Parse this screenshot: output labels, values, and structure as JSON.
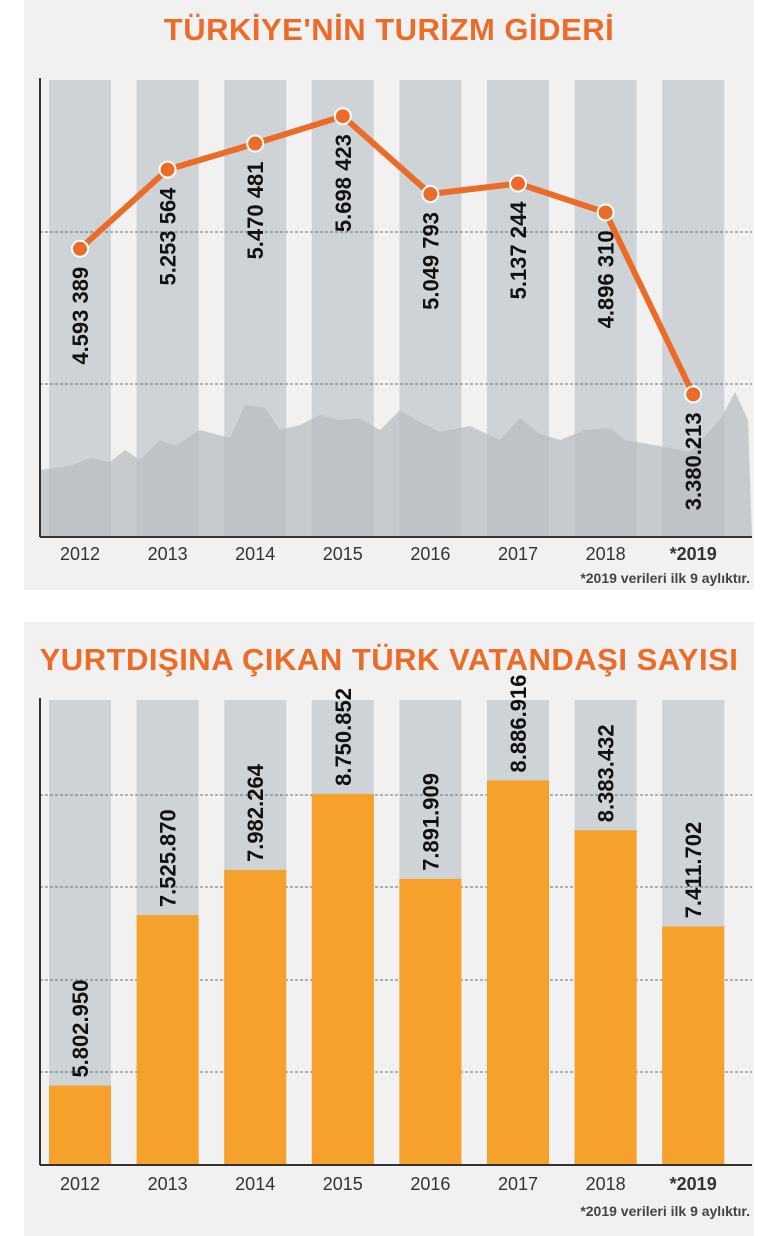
{
  "charts": {
    "top": {
      "title": "TÜRKİYE'NİN TURİZM GİDERİ",
      "footnote": "*2019 verileri ilk 9 aylıktır."
    },
    "bottom": {
      "title": "YURTDIŞINA ÇIKAN TÜRK VATANDAŞI SAYISI",
      "footnote": "*2019 verileri ilk 9 aylıktır."
    }
  },
  "colors": {
    "line": "#ec6b26",
    "bar": "#f6a12b",
    "title": "#ec6b26",
    "column_bg": "#ced3d8",
    "panel_bg": "#f1f1f2"
  },
  "chart_data": [
    {
      "type": "line",
      "title": "TÜRKİYE'NİN TURİZM GİDERİ",
      "categories": [
        "2012",
        "2013",
        "2014",
        "2015",
        "2016",
        "2017",
        "2018",
        "*2019"
      ],
      "values": [
        4593389,
        5253564,
        5470481,
        5698423,
        5049793,
        5137244,
        4896310,
        3380213
      ],
      "labels": [
        "4.593 389",
        "5.253 564",
        "5.470 481",
        "5.698 423",
        "5.049 793",
        "5.137 244",
        "4.896 310",
        "3.380.213"
      ],
      "ylim": [
        2500000,
        6000000
      ],
      "grid": true,
      "footnote": "*2019 verileri ilk 9 aylıktır."
    },
    {
      "type": "bar",
      "title": "YURTDIŞINA ÇIKAN TÜRK VATANDAŞI SAYISI",
      "categories": [
        "2012",
        "2013",
        "2014",
        "2015",
        "2016",
        "2017",
        "2018",
        "*2019"
      ],
      "values": [
        5802950,
        7525870,
        7982264,
        8750852,
        7891909,
        8886916,
        8383432,
        7411702
      ],
      "labels": [
        "5.802.950",
        "7.525.870",
        "7.982.264",
        "8.750.852",
        "7.891.909",
        "8.886.916",
        "8.383.432",
        "7.411.702"
      ],
      "ylim": [
        5000000,
        9700000
      ],
      "grid": true,
      "footnote": "*2019 verileri ilk 9 aylıktır."
    }
  ]
}
